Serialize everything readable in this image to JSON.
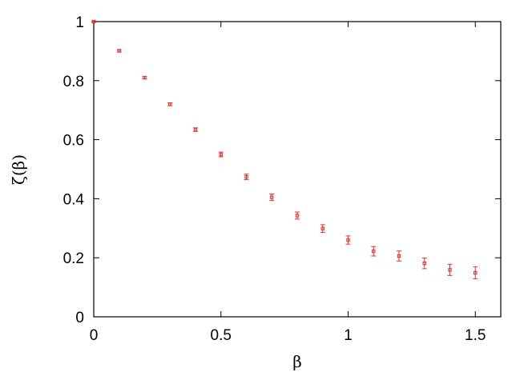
{
  "chart_data": {
    "type": "scatter",
    "title": "",
    "xlabel": "β",
    "ylabel": "ζ(β)",
    "xlim": [
      0,
      1.6
    ],
    "ylim": [
      0,
      1
    ],
    "xticks": [
      0,
      0.5,
      1,
      1.5
    ],
    "xtick_labels": [
      "0",
      "0.5",
      "1",
      "1.5"
    ],
    "yticks": [
      0,
      0.2,
      0.4,
      0.6,
      0.8,
      1
    ],
    "ytick_labels": [
      "0",
      "0.2",
      "0.4",
      "0.6",
      "0.8",
      "1"
    ],
    "grid": false,
    "marker_color": "#e8312f",
    "series": [
      {
        "x": [
          0,
          0.1,
          0.2,
          0.3,
          0.4,
          0.5,
          0.6,
          0.7,
          0.8,
          0.9,
          1.0,
          1.1,
          1.2,
          1.3,
          1.4,
          1.5
        ],
        "y": [
          1.0,
          0.901,
          0.81,
          0.72,
          0.634,
          0.55,
          0.474,
          0.405,
          0.343,
          0.299,
          0.26,
          0.222,
          0.206,
          0.181,
          0.159,
          0.149
        ],
        "yerr": [
          0.002,
          0.004,
          0.004,
          0.005,
          0.006,
          0.008,
          0.009,
          0.011,
          0.012,
          0.013,
          0.014,
          0.016,
          0.017,
          0.018,
          0.019,
          0.02
        ]
      }
    ]
  }
}
